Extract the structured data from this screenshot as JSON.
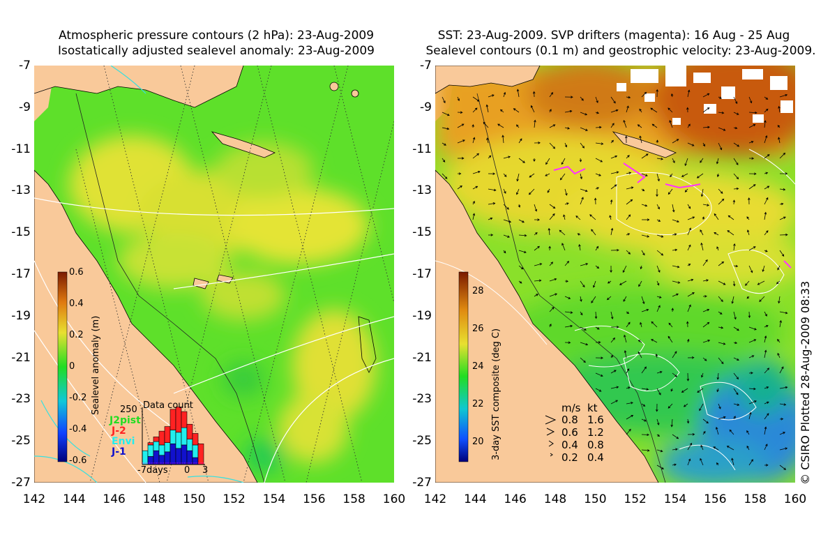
{
  "left_panel": {
    "title_line1": "Atmospheric pressure contours (2 hPa): 23-Aug-2009",
    "title_line2": "Isostatically adjusted sealevel anomaly: 23-Aug-2009",
    "colorbar": {
      "label": "Sealevel anomaly (m)",
      "ticks": [
        "0.6",
        "0.4",
        "0.2",
        "0",
        "-0.2",
        "-0.4",
        "-0.6"
      ],
      "range": [
        -0.6,
        0.6
      ]
    },
    "data_count": {
      "title": "Data count",
      "max_label": "250",
      "x_label_left": "-7days",
      "x_label_mid": "0",
      "x_label_right": "3",
      "legend": [
        {
          "name": "J2pist",
          "color": "#22dd22"
        },
        {
          "name": "J-2",
          "color": "#ff2222"
        },
        {
          "name": "Envi",
          "color": "#22eeee"
        },
        {
          "name": "J-1",
          "color": "#1111cc"
        }
      ],
      "bars": [
        {
          "day": -7,
          "j1": 0,
          "envi": 60,
          "j2": 0
        },
        {
          "day": -6,
          "j1": 35,
          "envi": 50,
          "j2": 10
        },
        {
          "day": -5,
          "j1": 60,
          "envi": 40,
          "j2": 20
        },
        {
          "day": -4,
          "j1": 40,
          "envi": 45,
          "j2": 60
        },
        {
          "day": -3,
          "j1": 55,
          "envi": 40,
          "j2": 70
        },
        {
          "day": -2,
          "j1": 90,
          "envi": 60,
          "j2": 90
        },
        {
          "day": -1,
          "j1": 70,
          "envi": 70,
          "j2": 110
        },
        {
          "day": 0,
          "j1": 85,
          "envi": 75,
          "j2": 70
        },
        {
          "day": 1,
          "j1": 60,
          "envi": 50,
          "j2": 65
        },
        {
          "day": 2,
          "j1": 30,
          "envi": 55,
          "j2": 50
        },
        {
          "day": 3,
          "j1": 0,
          "envi": 0,
          "j2": 90
        }
      ]
    }
  },
  "right_panel": {
    "title_line1": "SST: 23-Aug-2009. SVP drifters (magenta): 16 Aug - 25 Aug",
    "title_line2": "Sealevel contours (0.1 m) and geostrophic velocity: 23-Aug-2009.",
    "colorbar": {
      "label": "3-day SST composite (deg C)",
      "ticks": [
        "28",
        "26",
        "24",
        "22",
        "20"
      ],
      "range": [
        19,
        29
      ]
    },
    "velocity_legend": {
      "header_ms": "m/s",
      "header_kt": "kt",
      "rows": [
        {
          "ms": "0.8",
          "kt": "1.6"
        },
        {
          "ms": "0.6",
          "kt": "1.2"
        },
        {
          "ms": "0.4",
          "kt": "0.8"
        },
        {
          "ms": "0.2",
          "kt": "0.4"
        }
      ]
    }
  },
  "axes": {
    "lat_ticks": [
      "-7",
      "-9",
      "-11",
      "-13",
      "-15",
      "-17",
      "-19",
      "-21",
      "-23",
      "-25",
      "-27"
    ],
    "lon_ticks": [
      "142",
      "144",
      "146",
      "148",
      "150",
      "152",
      "154",
      "156",
      "158",
      "160"
    ]
  },
  "credit": "© CSIRO Plotted 28-Aug-2009 08:33",
  "colors": {
    "land": "#f9c99a",
    "ocean_green": "#55dd22",
    "warm_yellow": "#e8e030",
    "sst_orange": "#e89020",
    "sst_blue": "#2a7ad8"
  }
}
